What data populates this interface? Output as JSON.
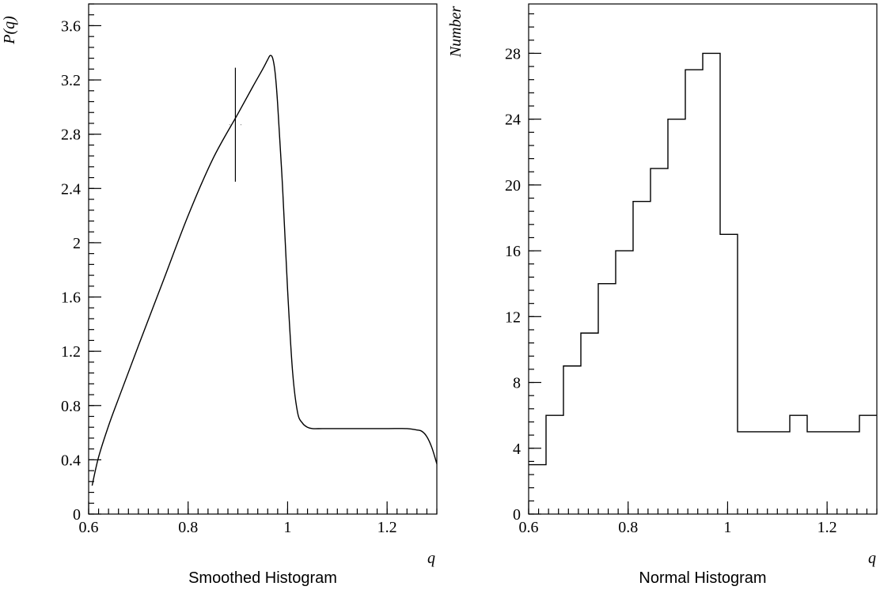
{
  "chart_data": [
    {
      "type": "line",
      "caption": "Smoothed Histogram",
      "xlabel": "q",
      "ylabel": "P(q)",
      "xlim": [
        0.6,
        1.3
      ],
      "ylim": [
        0,
        3.76
      ],
      "x_ticks": [
        "0.6",
        "0.8",
        "1",
        "1.2"
      ],
      "y_ticks": [
        "0",
        "0.4",
        "0.8",
        "1.2",
        "1.6",
        "2",
        "2.4",
        "2.8",
        "3.2",
        "3.6"
      ],
      "x_minor_step": 0.02,
      "y_minor_step": 0.08,
      "series": [
        {
          "x": [
            0.607,
            0.62,
            0.64,
            0.66,
            0.7,
            0.75,
            0.8,
            0.85,
            0.9,
            0.93,
            0.95,
            0.96,
            0.965,
            0.97,
            0.975,
            0.98,
            0.99,
            1.0,
            1.01,
            1.02,
            1.03,
            1.04,
            1.05,
            1.07,
            1.1,
            1.15,
            1.2,
            1.24,
            1.26,
            1.27,
            1.28,
            1.29,
            1.3
          ],
          "y": [
            0.21,
            0.42,
            0.65,
            0.85,
            1.24,
            1.72,
            2.2,
            2.62,
            2.95,
            3.15,
            3.28,
            3.35,
            3.38,
            3.36,
            3.25,
            3.02,
            2.4,
            1.65,
            1.05,
            0.75,
            0.67,
            0.64,
            0.63,
            0.63,
            0.63,
            0.63,
            0.63,
            0.63,
            0.62,
            0.61,
            0.57,
            0.49,
            0.37
          ]
        }
      ],
      "error_marker": {
        "x": 0.895,
        "y": 2.87,
        "y_low": 2.45,
        "y_high": 3.29,
        "x_low": 0.883,
        "x_high": 0.907
      }
    },
    {
      "type": "bar",
      "caption": "Normal Histogram",
      "xlabel": "q",
      "ylabel": "Number",
      "xlim": [
        0.6,
        1.3
      ],
      "ylim": [
        0,
        31
      ],
      "x_ticks": [
        "0.6",
        "0.8",
        "1",
        "1.2"
      ],
      "y_ticks": [
        "0",
        "4",
        "8",
        "12",
        "16",
        "20",
        "24",
        "28"
      ],
      "x_minor_step": 0.02,
      "y_minor_step": 0.8,
      "bin_edges": [
        0.6,
        0.635,
        0.67,
        0.705,
        0.74,
        0.775,
        0.81,
        0.845,
        0.88,
        0.915,
        0.95,
        0.985,
        1.02,
        1.055,
        1.09,
        1.125,
        1.16,
        1.195,
        1.23,
        1.265,
        1.3
      ],
      "values": [
        3,
        6,
        9,
        11,
        14,
        16,
        19,
        21,
        24,
        27,
        28,
        17,
        5,
        5,
        5,
        6,
        5,
        5,
        5,
        6
      ]
    }
  ]
}
